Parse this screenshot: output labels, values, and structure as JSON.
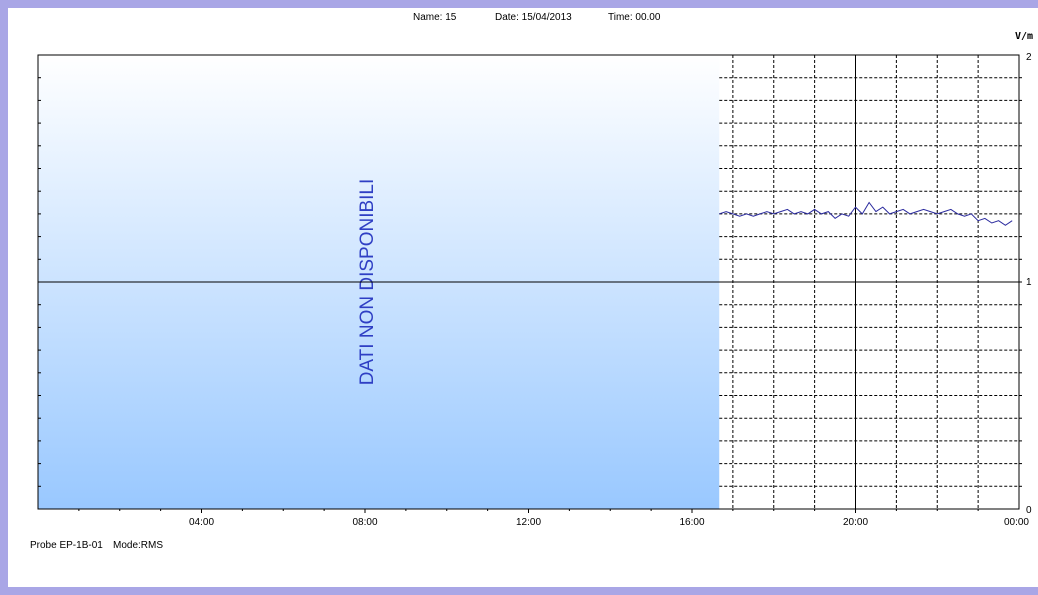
{
  "header": {
    "name": "Name: 15",
    "date": "Date: 15/04/2013",
    "time": "Time: 00.00"
  },
  "footer": {
    "probe": "Probe EP-1B-01",
    "mode": "Mode:RMS"
  },
  "colors": {
    "window_border": "#a9a6e6",
    "no_data_gradient_top": "#ffffff",
    "no_data_gradient_bottom": "#99c8ff",
    "series": "#2b2b9e",
    "no_data_text": "#2f3fc4"
  },
  "chart_data": {
    "type": "line",
    "unit_label": "V/m",
    "no_data_label": "DATI NON DISPONIBILI",
    "no_data_until": "16:40",
    "xlim": [
      "00:00",
      "24:00"
    ],
    "x_tick_labels": [
      "04:00",
      "08:00",
      "12:00",
      "16:00",
      "20:00",
      "00:00"
    ],
    "ylim": [
      0,
      2
    ],
    "y_tick_labels": [
      "0",
      "1",
      "2"
    ],
    "grid": true,
    "series": [
      {
        "x": [
          "16:40",
          "16:50",
          "17:00",
          "17:10",
          "17:20",
          "17:30",
          "17:40",
          "17:50",
          "18:00",
          "18:10",
          "18:20",
          "18:30",
          "18:40",
          "18:50",
          "19:00",
          "19:10",
          "19:20",
          "19:30",
          "19:40",
          "19:50",
          "20:00",
          "20:10",
          "20:20",
          "20:30",
          "20:40",
          "20:50",
          "21:00",
          "21:10",
          "21:20",
          "21:30",
          "21:40",
          "21:50",
          "22:00",
          "22:10",
          "22:20",
          "22:30",
          "22:40",
          "22:50",
          "23:00",
          "23:10",
          "23:20",
          "23:30",
          "23:40",
          "23:50"
        ],
        "y": [
          1.3,
          1.31,
          1.3,
          1.29,
          1.3,
          1.29,
          1.3,
          1.31,
          1.3,
          1.31,
          1.32,
          1.3,
          1.31,
          1.3,
          1.32,
          1.3,
          1.31,
          1.28,
          1.3,
          1.29,
          1.33,
          1.3,
          1.35,
          1.31,
          1.33,
          1.3,
          1.31,
          1.32,
          1.3,
          1.31,
          1.32,
          1.31,
          1.3,
          1.31,
          1.32,
          1.3,
          1.29,
          1.3,
          1.27,
          1.28,
          1.26,
          1.27,
          1.25,
          1.27
        ]
      }
    ]
  }
}
